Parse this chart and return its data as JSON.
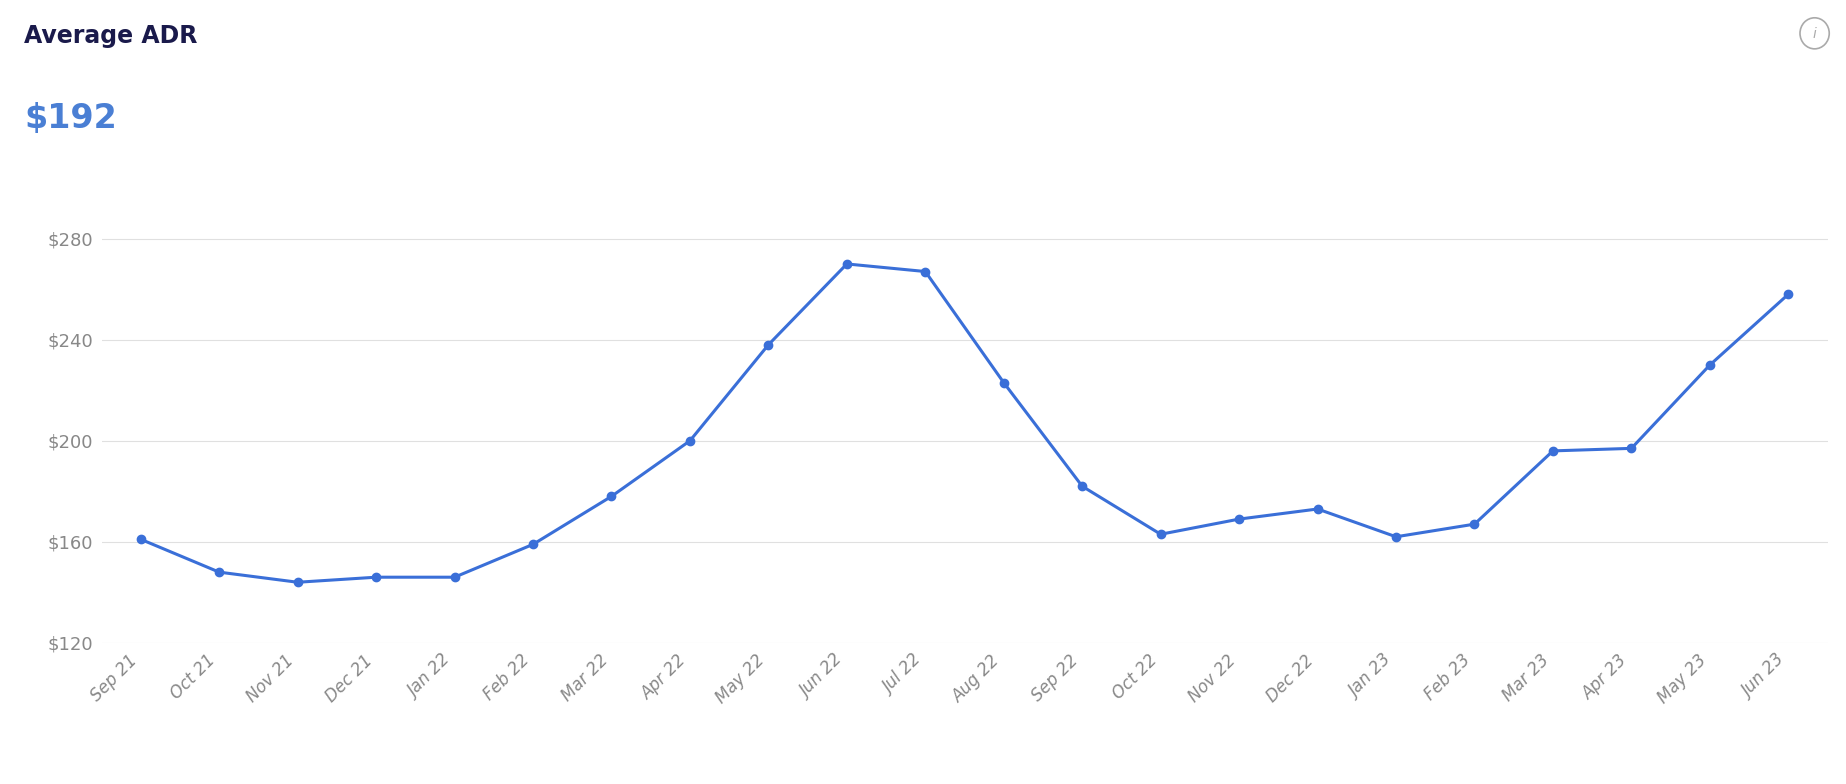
{
  "title": "Average ADR",
  "subtitle": "$192",
  "title_color": "#1a1a4b",
  "subtitle_color": "#4a7fd4",
  "line_color": "#3a6fd8",
  "background_color": "#ffffff",
  "x_labels": [
    "Sep 21",
    "Oct 21",
    "Nov 21",
    "Dec 21",
    "Jan 22",
    "Feb 22",
    "Mar 22",
    "Apr 22",
    "May 22",
    "Jun 22",
    "Jul 22",
    "Aug 22",
    "Sep 22",
    "Oct 22",
    "Nov 22",
    "Dec 22",
    "Jan 23",
    "Feb 23",
    "Mar 23",
    "Apr 23",
    "May 23",
    "Jun 23"
  ],
  "y_values": [
    161,
    148,
    144,
    146,
    146,
    159,
    178,
    200,
    238,
    270,
    267,
    223,
    182,
    163,
    169,
    173,
    162,
    167,
    196,
    197,
    230,
    258
  ],
  "ylim": [
    120,
    300
  ],
  "yticks": [
    120,
    160,
    200,
    240,
    280
  ],
  "ytick_labels": [
    "$120",
    "$160",
    "$200",
    "$240",
    "$280"
  ],
  "grid_color": "#e0e0e0",
  "tick_color": "#888888",
  "marker_size": 6,
  "line_width": 2.2,
  "figsize": [
    18.46,
    7.84
  ],
  "dpi": 100
}
